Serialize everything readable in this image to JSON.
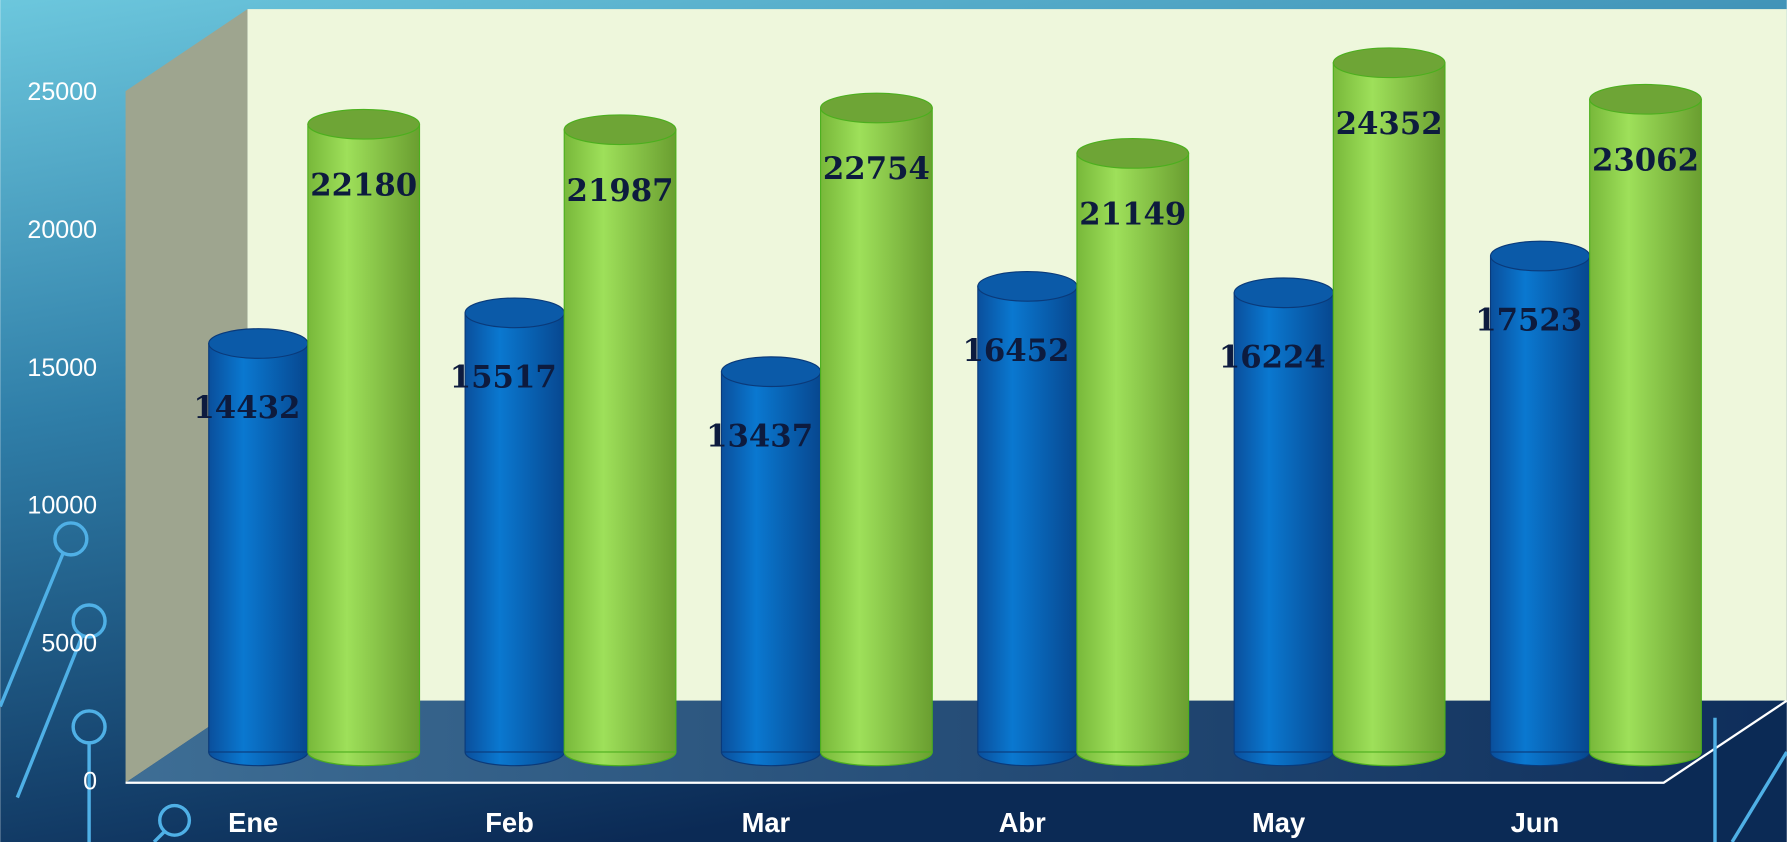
{
  "chart_data": {
    "type": "bar3d",
    "categories": [
      "Ene",
      "Feb",
      "Mar",
      "Abr",
      "May",
      "Jun"
    ],
    "series": [
      {
        "color": "#0a6fc6",
        "values": [
          14432,
          15517,
          13437,
          16452,
          16224,
          17523
        ]
      },
      {
        "color": "#8fd44a",
        "values": [
          22180,
          21987,
          22754,
          21149,
          24352,
          23062
        ]
      }
    ],
    "ylim": [
      0,
      25000
    ],
    "yticks": [
      0,
      5000,
      10000,
      15000,
      20000,
      25000
    ],
    "grid": false
  }
}
